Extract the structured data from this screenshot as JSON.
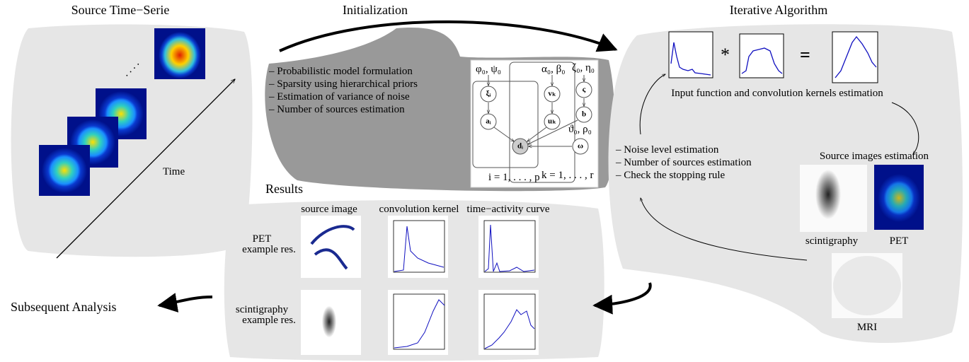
{
  "panels": {
    "source": {
      "title": "Source Time−Serie",
      "axis_label": "Time",
      "ellipsis": ". . . ."
    },
    "initialization": {
      "title": "Initialization",
      "items": [
        "– Probabilistic model formulation",
        "– Sparsity using hierarchical priors",
        "– Estimation of variance of noise",
        "– Number of sources estimation"
      ],
      "model": {
        "hyperparameters": [
          "φ₀, ψ₀",
          "α₀, β₀",
          "ζ₀, η₀",
          "ϑ₀, ρ₀"
        ],
        "nodes": [
          "ξᵢ",
          "aᵢ",
          "vₖ",
          "uₖ",
          "ς",
          "b",
          "dᵢ",
          "ω"
        ],
        "plates": [
          "i = 1, . . . , p",
          "k = 1, . . . , r"
        ]
      }
    },
    "iterative": {
      "title": "Iterative Algorithm",
      "operators": [
        "*",
        "="
      ],
      "kernel_caption": "Input function and convolution kernels estimation",
      "source_caption": "Source images estimation",
      "images": [
        "scintigraphy",
        "PET",
        "MRI"
      ],
      "items": [
        "– Noise level estimation",
        "– Number of sources estimation",
        "– Check the stopping rule"
      ]
    },
    "results": {
      "title": "Results",
      "columns": [
        "source image",
        "convolution kernel",
        "time−activity curve"
      ],
      "rows": [
        {
          "label": "PET",
          "sublabel": "example res."
        },
        {
          "label": "scintigraphy",
          "sublabel": "example res."
        }
      ]
    }
  },
  "output": "Subsequent Analysis"
}
